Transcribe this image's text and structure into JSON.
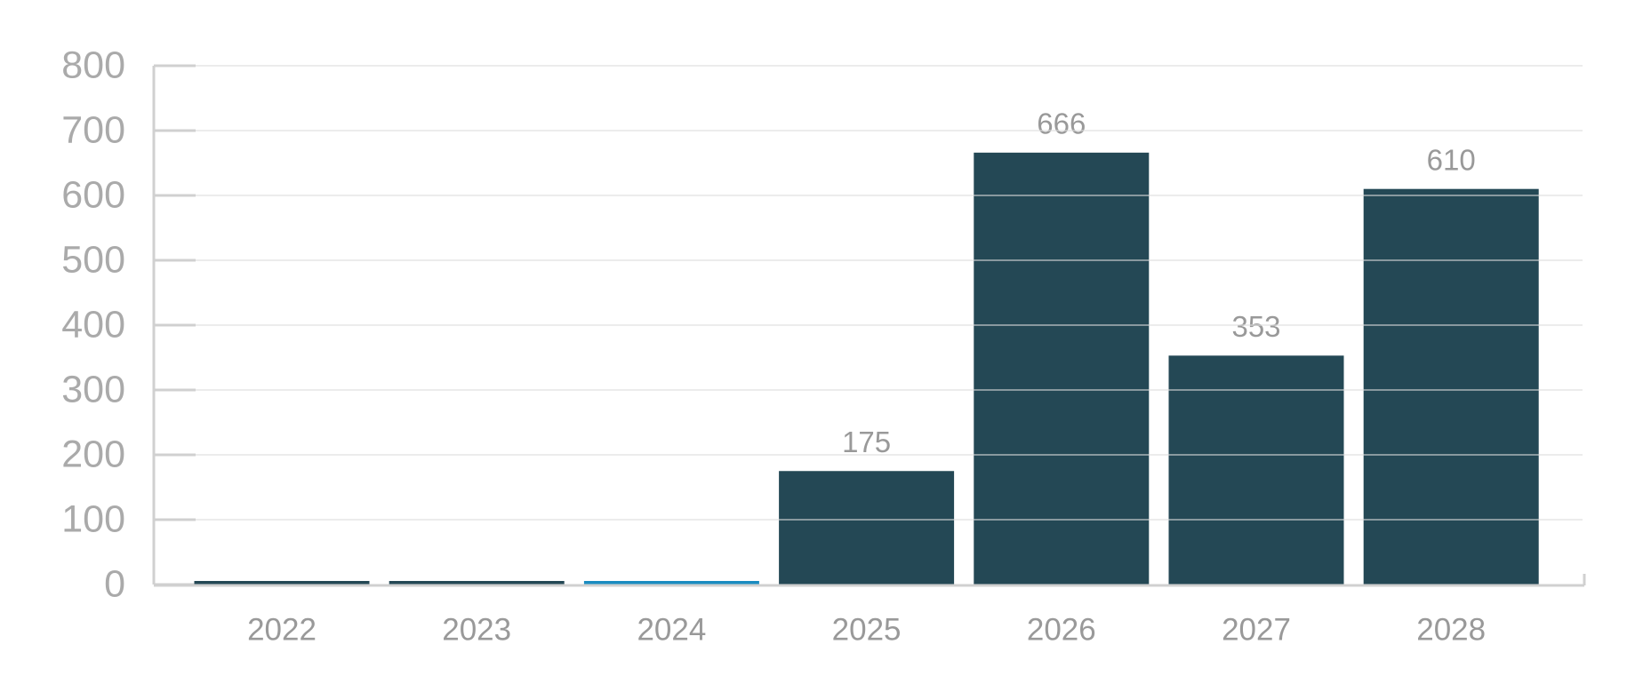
{
  "chart_data": {
    "type": "bar",
    "categories": [
      "2022",
      "2023",
      "2024",
      "2025",
      "2026",
      "2027",
      "2028"
    ],
    "values": [
      0,
      0,
      0,
      175,
      666,
      353,
      610
    ],
    "colors": [
      "#244855",
      "#244855",
      "#1a8cc0",
      "#244855",
      "#244855",
      "#244855",
      "#244855"
    ],
    "ylim": [
      0,
      800
    ],
    "yticks": [
      0,
      100,
      200,
      300,
      400,
      500,
      600,
      700,
      800
    ],
    "grid": true
  }
}
